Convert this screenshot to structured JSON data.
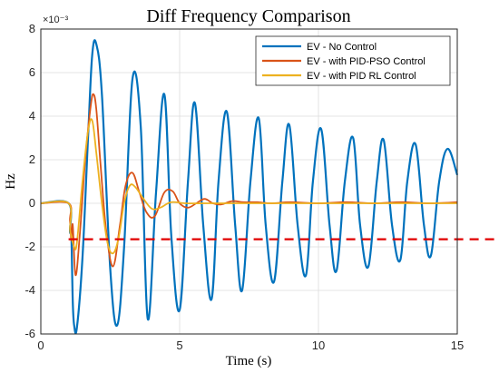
{
  "chart_data": {
    "type": "line",
    "title": "Diff Frequency Comparison",
    "xlabel": "Time (s)",
    "ylabel": "Hz",
    "y_scale_label": "×10⁻³",
    "xlim": [
      0,
      15
    ],
    "ylim": [
      -6,
      8
    ],
    "x_ticks": [
      "0",
      "5",
      "10",
      "15"
    ],
    "y_ticks": [
      "-6",
      "-4",
      "-2",
      "0",
      "2",
      "4",
      "6",
      "8"
    ],
    "grid": true,
    "legend_position": "top-right",
    "threshold_line": {
      "y": -1.65,
      "color": "#e00000",
      "style": "dashed"
    },
    "series": [
      {
        "name": "EV - No Control",
        "color": "#0072BD",
        "x": [
          0,
          1.0,
          1.05,
          1.1,
          1.15,
          1.2,
          1.3,
          1.5,
          1.7,
          1.85,
          2.0,
          2.2,
          2.5,
          2.75,
          3.0,
          3.3,
          3.6,
          3.85,
          4.15,
          4.45,
          4.7,
          5.0,
          5.3,
          5.55,
          5.85,
          6.15,
          6.4,
          6.7,
          7.0,
          7.25,
          7.55,
          7.85,
          8.1,
          8.4,
          8.7,
          8.95,
          9.25,
          9.55,
          9.8,
          10.1,
          10.4,
          10.65,
          10.95,
          11.25,
          11.5,
          11.8,
          12.1,
          12.35,
          12.65,
          12.95,
          13.2,
          13.5,
          13.8,
          14.05,
          14.35,
          14.65,
          15.0
        ],
        "y": [
          0,
          0,
          -1.3,
          -1.5,
          -4.5,
          -5.6,
          -5.7,
          -2.5,
          3.0,
          6.8,
          7.3,
          5.0,
          -3.0,
          -5.6,
          -2.0,
          5.7,
          3.5,
          -5.3,
          0.5,
          5.0,
          -1.5,
          -4.9,
          1.0,
          4.6,
          -1.0,
          -4.4,
          1.0,
          4.2,
          -1.0,
          -4.0,
          1.0,
          3.9,
          -1.0,
          -3.6,
          1.0,
          3.6,
          -1.0,
          -3.3,
          1.0,
          3.4,
          -1.0,
          -3.1,
          1.0,
          3.0,
          -1.0,
          -2.9,
          1.0,
          2.9,
          -1.0,
          -2.6,
          1.0,
          2.7,
          -1.0,
          -2.4,
          1.0,
          2.5,
          1.3
        ]
      },
      {
        "name": "EV - with PID-PSO Control",
        "color": "#D95319",
        "x": [
          0,
          1.0,
          1.05,
          1.1,
          1.15,
          1.25,
          1.4,
          1.6,
          1.8,
          1.9,
          2.0,
          2.15,
          2.35,
          2.6,
          2.85,
          3.05,
          3.3,
          3.55,
          3.8,
          4.1,
          4.45,
          4.75,
          5.0,
          5.3,
          5.6,
          5.9,
          6.2,
          6.5,
          6.9,
          7.3,
          7.8,
          8.3,
          9.0,
          10.0,
          11.0,
          12.0,
          13.0,
          14.0,
          15.0
        ],
        "y": [
          0,
          0,
          -0.8,
          -1.7,
          -1.0,
          -3.3,
          -1.5,
          2.0,
          4.5,
          5.0,
          4.3,
          1.8,
          -1.2,
          -2.9,
          -1.0,
          0.8,
          1.4,
          0.5,
          -0.4,
          -0.6,
          0.5,
          0.55,
          0.0,
          -0.2,
          0.0,
          0.2,
          0.0,
          -0.05,
          0.1,
          0.05,
          0.05,
          0.0,
          0.05,
          0.0,
          0.05,
          0.0,
          0.05,
          0.0,
          0.05
        ]
      },
      {
        "name": "EV - with PID RL Control",
        "color": "#EDB120",
        "x": [
          0,
          1.0,
          1.05,
          1.1,
          1.2,
          1.3,
          1.5,
          1.7,
          1.85,
          2.0,
          2.2,
          2.4,
          2.6,
          2.8,
          3.0,
          3.2,
          3.4,
          3.7,
          4.0,
          4.3,
          4.7,
          5.2,
          6.0,
          7.0,
          8.0,
          10.0,
          12.0,
          15.0
        ],
        "y": [
          0,
          0,
          -1.2,
          -1.5,
          -2.0,
          -1.8,
          1.0,
          3.3,
          3.8,
          2.3,
          0.0,
          -1.8,
          -2.3,
          -1.6,
          0.0,
          0.8,
          0.75,
          0.2,
          -0.25,
          -0.2,
          0.05,
          0.0,
          0.0,
          0.0,
          0.0,
          0.0,
          0.0,
          0.0
        ]
      }
    ]
  }
}
